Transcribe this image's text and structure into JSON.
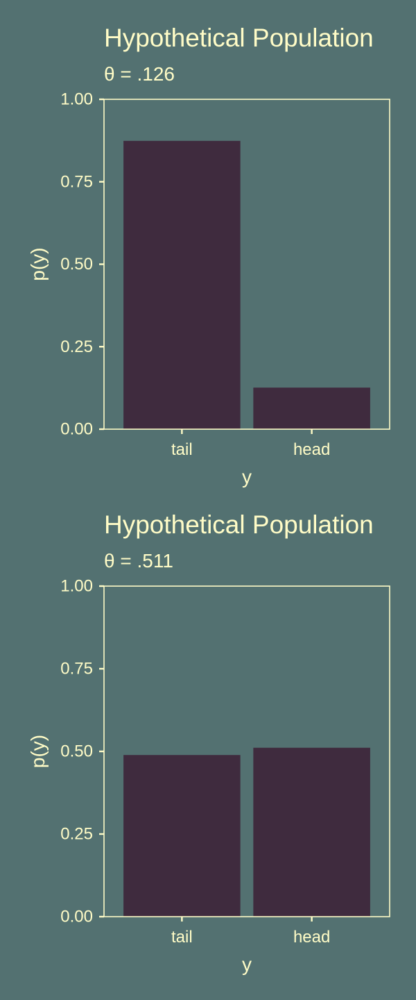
{
  "colors": {
    "background": "#537171",
    "bar_fill": "#3f2b3e",
    "text": "#fffcc7",
    "axis": "#fffcc7"
  },
  "chart_data": [
    {
      "type": "bar",
      "title": "Hypothetical Population",
      "subtitle": "θ = .126",
      "xlabel": "y",
      "ylabel": "p(y)",
      "categories": [
        "tail",
        "head"
      ],
      "values": [
        0.874,
        0.126
      ],
      "ylim": [
        0,
        1
      ],
      "yticks": [
        0,
        0.25,
        0.5,
        0.75,
        1
      ],
      "ytick_labels": [
        "0.00",
        "0.25",
        "0.50",
        "0.75",
        "1.00"
      ],
      "grid": false,
      "legend": "none"
    },
    {
      "type": "bar",
      "title": "Hypothetical Population",
      "subtitle": "θ = .511",
      "xlabel": "y",
      "ylabel": "p(y)",
      "categories": [
        "tail",
        "head"
      ],
      "values": [
        0.489,
        0.511
      ],
      "ylim": [
        0,
        1
      ],
      "yticks": [
        0,
        0.25,
        0.5,
        0.75,
        1
      ],
      "ytick_labels": [
        "0.00",
        "0.25",
        "0.50",
        "0.75",
        "1.00"
      ],
      "grid": false,
      "legend": "none"
    }
  ]
}
